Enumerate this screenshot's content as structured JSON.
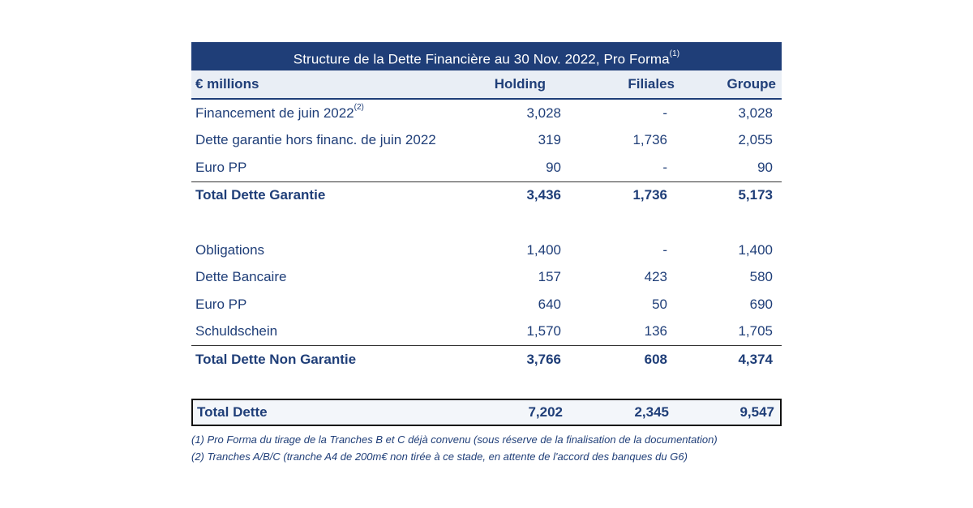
{
  "title": {
    "text": "Structure de la Dette Financière au 30 Nov. 2022, Pro Forma",
    "note_ref": "(1)"
  },
  "header": {
    "label": "€ millions",
    "col1": "Holding",
    "col2": "Filiales",
    "col3": "Groupe"
  },
  "secured": [
    {
      "label": "Financement de juin 2022",
      "ref": "(2)",
      "holding": "3,028",
      "filiales": "-",
      "groupe": "3,028"
    },
    {
      "label": "Dette garantie hors financ. de juin 2022",
      "ref": "",
      "holding": "319",
      "filiales": "1,736",
      "groupe": "2,055"
    },
    {
      "label": "Euro PP",
      "ref": "",
      "holding": "90",
      "filiales": "-",
      "groupe": "90"
    }
  ],
  "secured_total": {
    "label": "Total Dette Garantie",
    "holding": "3,436",
    "filiales": "1,736",
    "groupe": "5,173"
  },
  "unsecured": [
    {
      "label": "Obligations",
      "holding": "1,400",
      "filiales": "-",
      "groupe": "1,400"
    },
    {
      "label": "Dette Bancaire",
      "holding": "157",
      "filiales": "423",
      "groupe": "580"
    },
    {
      "label": "Euro PP",
      "holding": "640",
      "filiales": "50",
      "groupe": "690"
    },
    {
      "label": "Schuldschein",
      "holding": "1,570",
      "filiales": "136",
      "groupe": "1,705"
    }
  ],
  "unsecured_total": {
    "label": "Total Dette Non Garantie",
    "holding": "3,766",
    "filiales": "608",
    "groupe": "4,374"
  },
  "grand_total": {
    "label": "Total Dette",
    "holding": "7,202",
    "filiales": "2,345",
    "groupe": "9,547"
  },
  "notes": [
    "(1) Pro Forma du tirage de la Tranches B et C déjà convenu (sous réserve de la finalisation de la documentation)",
    "(2) Tranches A/B/C (tranche A4 de 200m€ non tirée à ce stade, en attente de l'accord des banques du G6)"
  ]
}
